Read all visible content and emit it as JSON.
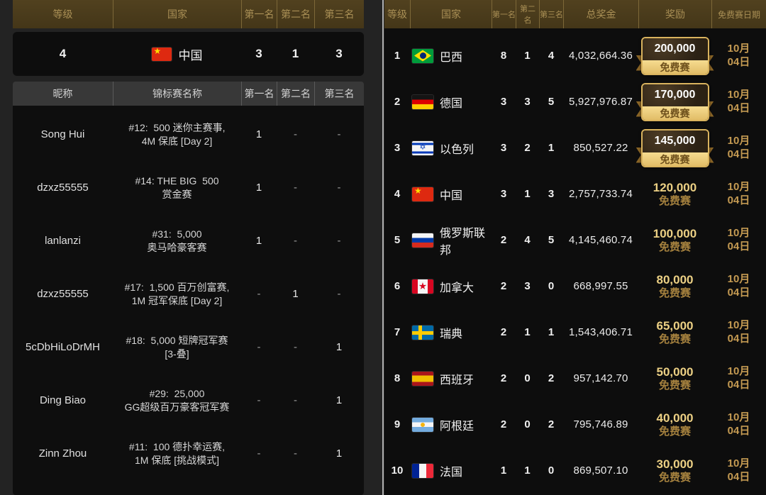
{
  "colors": {
    "header_gold_bg": "#4a3b1e",
    "header_gold_text": "#a98f55",
    "panel_bg": "#0d0d0d",
    "reward_gold": "#ecd084",
    "reward_label_gold": "#a5813e",
    "date_gold": "#c49a52",
    "badge_border_gold": "#d9b35e"
  },
  "left": {
    "summary_header": {
      "rank": "等级",
      "country": "国家",
      "first": "第一名",
      "second": "第二名",
      "third": "第三名"
    },
    "summary_row": {
      "rank": "4",
      "flag": "flag-china",
      "country": "中国",
      "first": "3",
      "second": "1",
      "third": "3"
    },
    "detail_header": {
      "nickname": "昵称",
      "tournament": "锦标赛名称",
      "first": "第一名",
      "second": "第二名",
      "third": "第三名"
    },
    "rows": [
      {
        "nickname": "Song Hui",
        "t1": "#12:  500 迷你主赛事,",
        "t2": "4M 保底 [Day 2]",
        "first": "1",
        "second": "-",
        "third": "-"
      },
      {
        "nickname": "dzxz55555",
        "t1": "#14: THE BIG  500",
        "t2": "赏金赛",
        "first": "1",
        "second": "-",
        "third": "-"
      },
      {
        "nickname": "lanlanzi",
        "t1": "#31:  5,000",
        "t2": "奥马哈豪客赛",
        "first": "1",
        "second": "-",
        "third": "-"
      },
      {
        "nickname": "dzxz55555",
        "t1": "#17:  1,500 百万创富赛,",
        "t2": "1M 冠军保底 [Day 2]",
        "first": "-",
        "second": "1",
        "third": "-"
      },
      {
        "nickname": "5cDbHiLoDrMH",
        "t1": "#18:  5,000 短牌冠军赛",
        "t2": "[3-叠]",
        "first": "-",
        "second": "-",
        "third": "1"
      },
      {
        "nickname": "Ding Biao",
        "t1": "#29:  25,000",
        "t2": "GG超级百万豪客冠军赛",
        "first": "-",
        "second": "-",
        "third": "1"
      },
      {
        "nickname": "Zinn Zhou",
        "t1": "#11:  100 德扑幸运赛,",
        "t2": "1M 保底 [挑战模式]",
        "first": "-",
        "second": "-",
        "third": "1"
      }
    ]
  },
  "right": {
    "header": {
      "rank": "等级",
      "country": "国家",
      "first": "第一名",
      "second": "第二名",
      "third": "第三名",
      "prize": "总奖金",
      "reward": "奖励",
      "date": "免费赛日期"
    },
    "rows": [
      {
        "rank": "1",
        "flag": "flag-brazil",
        "country": "巴西",
        "first": "8",
        "second": "1",
        "third": "4",
        "prize": "4,032,664.36",
        "reward_amount": "200,000",
        "reward_label": "免费赛",
        "date1": "10月",
        "date2": "04日"
      },
      {
        "rank": "2",
        "flag": "flag-germany",
        "country": "德国",
        "first": "3",
        "second": "3",
        "third": "5",
        "prize": "5,927,976.87",
        "reward_amount": "170,000",
        "reward_label": "免费赛",
        "date1": "10月",
        "date2": "04日"
      },
      {
        "rank": "3",
        "flag": "flag-israel",
        "country": "以色列",
        "first": "3",
        "second": "2",
        "third": "1",
        "prize": "850,527.22",
        "reward_amount": "145,000",
        "reward_label": "免费赛",
        "date1": "10月",
        "date2": "04日"
      },
      {
        "rank": "4",
        "flag": "flag-china",
        "country": "中国",
        "first": "3",
        "second": "1",
        "third": "3",
        "prize": "2,757,733.74",
        "reward_amount": "120,000",
        "reward_label": "免费赛",
        "date1": "10月",
        "date2": "04日"
      },
      {
        "rank": "5",
        "flag": "flag-russia",
        "country": "俄罗斯联邦",
        "first": "2",
        "second": "4",
        "third": "5",
        "prize": "4,145,460.74",
        "reward_amount": "100,000",
        "reward_label": "免费赛",
        "date1": "10月",
        "date2": "04日"
      },
      {
        "rank": "6",
        "flag": "flag-canada",
        "country": "加拿大",
        "first": "2",
        "second": "3",
        "third": "0",
        "prize": "668,997.55",
        "reward_amount": "80,000",
        "reward_label": "免费赛",
        "date1": "10月",
        "date2": "04日"
      },
      {
        "rank": "7",
        "flag": "flag-sweden",
        "country": "瑞典",
        "first": "2",
        "second": "1",
        "third": "1",
        "prize": "1,543,406.71",
        "reward_amount": "65,000",
        "reward_label": "免费赛",
        "date1": "10月",
        "date2": "04日"
      },
      {
        "rank": "8",
        "flag": "flag-spain",
        "country": "西班牙",
        "first": "2",
        "second": "0",
        "third": "2",
        "prize": "957,142.70",
        "reward_amount": "50,000",
        "reward_label": "免费赛",
        "date1": "10月",
        "date2": "04日"
      },
      {
        "rank": "9",
        "flag": "flag-argentina",
        "country": "阿根廷",
        "first": "2",
        "second": "0",
        "third": "2",
        "prize": "795,746.89",
        "reward_amount": "40,000",
        "reward_label": "免费赛",
        "date1": "10月",
        "date2": "04日"
      },
      {
        "rank": "10",
        "flag": "flag-france",
        "country": "法国",
        "first": "1",
        "second": "1",
        "third": "0",
        "prize": "869,507.10",
        "reward_amount": "30,000",
        "reward_label": "免费赛",
        "date1": "10月",
        "date2": "04日"
      }
    ]
  }
}
